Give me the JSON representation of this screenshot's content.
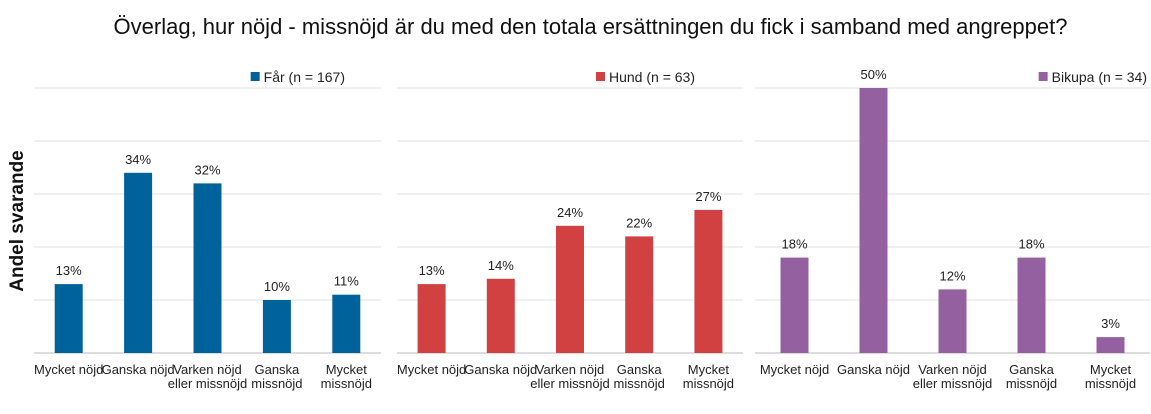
{
  "title": "Överlag, hur nöjd - missnöjd är du med den totala ersättningen du fick i samband med angreppet?",
  "ylabel": "Andel svarande",
  "chart_data": [
    {
      "type": "bar",
      "categories": [
        "Mycket nöjd",
        "Ganska nöjd",
        "Varken nöjd eller missnöjd",
        "Ganska missnöjd",
        "Mycket missnöjd"
      ],
      "series": [
        {
          "name": "Får (n = 167)",
          "color": "#00629b",
          "values": [
            13,
            34,
            32,
            10,
            11
          ],
          "value_labels": [
            "13%",
            "34%",
            "32%",
            "10%",
            "11%"
          ]
        }
      ],
      "ylim": [
        0,
        50
      ],
      "yticks": [
        0,
        10,
        20,
        30,
        40,
        50
      ],
      "grid": true
    },
    {
      "type": "bar",
      "categories": [
        "Mycket nöjd",
        "Ganska nöjd",
        "Varken nöjd eller missnöjd",
        "Ganska missnöjd",
        "Mycket missnöjd"
      ],
      "series": [
        {
          "name": "Hund (n = 63)",
          "color": "#d14142",
          "values": [
            13,
            14,
            24,
            22,
            27
          ],
          "value_labels": [
            "13%",
            "14%",
            "24%",
            "22%",
            "27%"
          ]
        }
      ],
      "ylim": [
        0,
        50
      ],
      "yticks": [
        0,
        10,
        20,
        30,
        40,
        50
      ],
      "grid": true
    },
    {
      "type": "bar",
      "categories": [
        "Mycket nöjd",
        "Ganska nöjd",
        "Varken nöjd eller missnöjd",
        "Ganska missnöjd",
        "Mycket missnöjd"
      ],
      "series": [
        {
          "name": "Bikupa (n = 34)",
          "color": "#9560a0",
          "values": [
            18,
            50,
            12,
            18,
            3
          ],
          "value_labels": [
            "18%",
            "50%",
            "12%",
            "18%",
            "3%"
          ]
        }
      ],
      "ylim": [
        0,
        50
      ],
      "yticks": [
        0,
        10,
        20,
        30,
        40,
        50
      ],
      "grid": true
    }
  ]
}
